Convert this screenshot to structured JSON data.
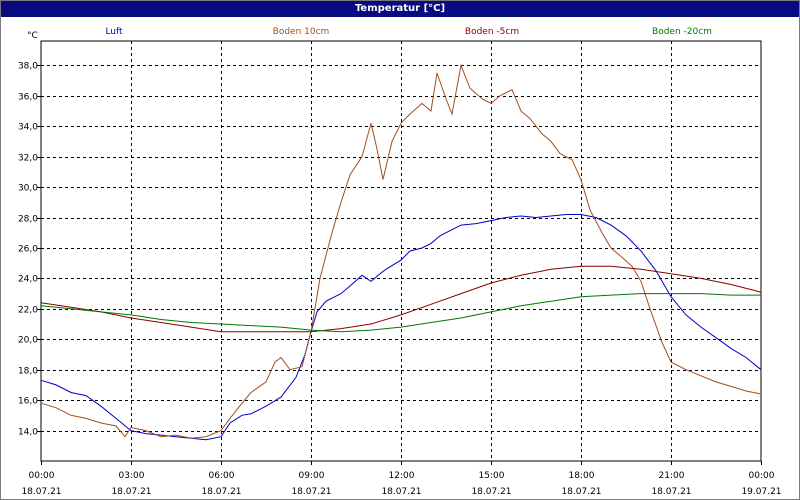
{
  "window": {
    "title": "Temperatur [°C]"
  },
  "chart_data": {
    "type": "line",
    "title": "Temperatur [°C]",
    "ylabel": "°C",
    "xlabel": "",
    "grid": true,
    "legend_position": "top",
    "x_range": [
      "18.07.21 00:00",
      "19.07.21 00:00"
    ],
    "ylim": [
      12.0,
      39.6
    ],
    "yticks": [
      "14,0",
      "16,0",
      "18,0",
      "20,0",
      "22,0",
      "24,0",
      "26,0",
      "28,0",
      "30,0",
      "32,0",
      "34,0",
      "36,0",
      "38,0"
    ],
    "xticks": [
      {
        "time": "00:00",
        "date": "18.07.21"
      },
      {
        "time": "03:00",
        "date": "18.07.21"
      },
      {
        "time": "06:00",
        "date": "18.07.21"
      },
      {
        "time": "09:00",
        "date": "18.07.21"
      },
      {
        "time": "12:00",
        "date": "18.07.21"
      },
      {
        "time": "15:00",
        "date": "18.07.21"
      },
      {
        "time": "18:00",
        "date": "18.07.21"
      },
      {
        "time": "21:00",
        "date": "18.07.21"
      },
      {
        "time": "00:00",
        "date": "19.07.21"
      }
    ],
    "series": [
      {
        "name": "Luft",
        "color": "#0000cc",
        "points": [
          [
            0,
            17.3
          ],
          [
            0.5,
            17.0
          ],
          [
            1.0,
            16.5
          ],
          [
            1.5,
            16.3
          ],
          [
            2.0,
            15.6
          ],
          [
            2.5,
            14.8
          ],
          [
            3.0,
            14.0
          ],
          [
            3.5,
            13.8
          ],
          [
            4.0,
            13.7
          ],
          [
            4.5,
            13.6
          ],
          [
            5.0,
            13.5
          ],
          [
            5.5,
            13.4
          ],
          [
            6.0,
            13.6
          ],
          [
            6.3,
            14.5
          ],
          [
            6.7,
            15.0
          ],
          [
            7.0,
            15.1
          ],
          [
            7.5,
            15.6
          ],
          [
            8.0,
            16.2
          ],
          [
            8.5,
            17.5
          ],
          [
            8.8,
            19.0
          ],
          [
            9.0,
            20.5
          ],
          [
            9.2,
            21.8
          ],
          [
            9.5,
            22.5
          ],
          [
            10.0,
            23.0
          ],
          [
            10.3,
            23.5
          ],
          [
            10.7,
            24.2
          ],
          [
            11.0,
            23.8
          ],
          [
            11.3,
            24.3
          ],
          [
            11.5,
            24.6
          ],
          [
            12.0,
            25.2
          ],
          [
            12.3,
            25.8
          ],
          [
            12.7,
            26.0
          ],
          [
            13.0,
            26.3
          ],
          [
            13.3,
            26.8
          ],
          [
            13.7,
            27.2
          ],
          [
            14.0,
            27.5
          ],
          [
            14.5,
            27.6
          ],
          [
            15.0,
            27.8
          ],
          [
            15.5,
            28.0
          ],
          [
            16.0,
            28.1
          ],
          [
            16.5,
            28.0
          ],
          [
            17.0,
            28.1
          ],
          [
            17.5,
            28.2
          ],
          [
            18.0,
            28.2
          ],
          [
            18.5,
            28.0
          ],
          [
            19.0,
            27.5
          ],
          [
            19.5,
            26.8
          ],
          [
            20.0,
            25.8
          ],
          [
            20.5,
            24.5
          ],
          [
            21.0,
            22.8
          ],
          [
            21.5,
            21.6
          ],
          [
            22.0,
            20.8
          ],
          [
            22.5,
            20.1
          ],
          [
            23.0,
            19.4
          ],
          [
            23.5,
            18.8
          ],
          [
            24.0,
            18.0
          ]
        ]
      },
      {
        "name": "Boden 10cm",
        "color": "#a0501e",
        "points": [
          [
            0,
            15.8
          ],
          [
            0.5,
            15.5
          ],
          [
            1.0,
            15.0
          ],
          [
            1.5,
            14.8
          ],
          [
            2.0,
            14.5
          ],
          [
            2.5,
            14.3
          ],
          [
            2.8,
            13.6
          ],
          [
            3.0,
            14.2
          ],
          [
            3.5,
            14.0
          ],
          [
            4.0,
            13.6
          ],
          [
            4.5,
            13.7
          ],
          [
            5.0,
            13.5
          ],
          [
            5.5,
            13.6
          ],
          [
            6.0,
            14.0
          ],
          [
            6.3,
            14.8
          ],
          [
            6.7,
            15.8
          ],
          [
            7.0,
            16.5
          ],
          [
            7.5,
            17.2
          ],
          [
            7.8,
            18.5
          ],
          [
            8.0,
            18.8
          ],
          [
            8.3,
            18.0
          ],
          [
            8.7,
            18.2
          ],
          [
            9.0,
            20.5
          ],
          [
            9.3,
            24.0
          ],
          [
            9.7,
            27.0
          ],
          [
            10.0,
            29.0
          ],
          [
            10.3,
            30.8
          ],
          [
            10.7,
            32.0
          ],
          [
            11.0,
            34.2
          ],
          [
            11.2,
            32.5
          ],
          [
            11.4,
            30.5
          ],
          [
            11.7,
            33.0
          ],
          [
            12.0,
            34.2
          ],
          [
            12.3,
            34.8
          ],
          [
            12.7,
            35.5
          ],
          [
            13.0,
            35.0
          ],
          [
            13.2,
            37.5
          ],
          [
            13.5,
            35.8
          ],
          [
            13.7,
            34.8
          ],
          [
            14.0,
            38.0
          ],
          [
            14.3,
            36.5
          ],
          [
            14.7,
            35.8
          ],
          [
            15.0,
            35.5
          ],
          [
            15.3,
            36.0
          ],
          [
            15.7,
            36.4
          ],
          [
            16.0,
            35.0
          ],
          [
            16.3,
            34.5
          ],
          [
            16.7,
            33.5
          ],
          [
            17.0,
            33.0
          ],
          [
            17.3,
            32.2
          ],
          [
            17.7,
            31.8
          ],
          [
            18.0,
            30.5
          ],
          [
            18.3,
            28.5
          ],
          [
            18.7,
            27.0
          ],
          [
            19.0,
            26.0
          ],
          [
            19.3,
            25.5
          ],
          [
            19.7,
            24.8
          ],
          [
            20.0,
            23.8
          ],
          [
            20.3,
            22.0
          ],
          [
            20.7,
            19.8
          ],
          [
            21.0,
            18.5
          ],
          [
            21.5,
            18.0
          ],
          [
            22.0,
            17.6
          ],
          [
            22.5,
            17.2
          ],
          [
            23.0,
            16.9
          ],
          [
            23.5,
            16.6
          ],
          [
            24.0,
            16.4
          ]
        ]
      },
      {
        "name": "Boden -5cm",
        "color": "#8b0000",
        "points": [
          [
            0,
            22.4
          ],
          [
            1,
            22.1
          ],
          [
            2,
            21.8
          ],
          [
            3,
            21.4
          ],
          [
            4,
            21.1
          ],
          [
            5,
            20.8
          ],
          [
            6,
            20.5
          ],
          [
            7,
            20.5
          ],
          [
            8,
            20.5
          ],
          [
            9,
            20.5
          ],
          [
            10,
            20.7
          ],
          [
            11,
            21.0
          ],
          [
            12,
            21.6
          ],
          [
            13,
            22.3
          ],
          [
            14,
            23.0
          ],
          [
            15,
            23.7
          ],
          [
            16,
            24.2
          ],
          [
            17,
            24.6
          ],
          [
            18,
            24.8
          ],
          [
            19,
            24.8
          ],
          [
            20,
            24.6
          ],
          [
            21,
            24.3
          ],
          [
            22,
            24.0
          ],
          [
            23,
            23.6
          ],
          [
            24,
            23.1
          ]
        ]
      },
      {
        "name": "Boden -20cm",
        "color": "#007800",
        "points": [
          [
            0,
            22.2
          ],
          [
            1,
            22.0
          ],
          [
            2,
            21.8
          ],
          [
            3,
            21.6
          ],
          [
            4,
            21.3
          ],
          [
            5,
            21.1
          ],
          [
            6,
            21.0
          ],
          [
            7,
            20.9
          ],
          [
            8,
            20.8
          ],
          [
            9,
            20.6
          ],
          [
            10,
            20.5
          ],
          [
            11,
            20.6
          ],
          [
            12,
            20.8
          ],
          [
            13,
            21.1
          ],
          [
            14,
            21.4
          ],
          [
            15,
            21.8
          ],
          [
            16,
            22.2
          ],
          [
            17,
            22.5
          ],
          [
            18,
            22.8
          ],
          [
            19,
            22.9
          ],
          [
            20,
            23.0
          ],
          [
            21,
            23.0
          ],
          [
            22,
            23.0
          ],
          [
            23,
            22.9
          ],
          [
            24,
            22.9
          ]
        ]
      }
    ]
  }
}
